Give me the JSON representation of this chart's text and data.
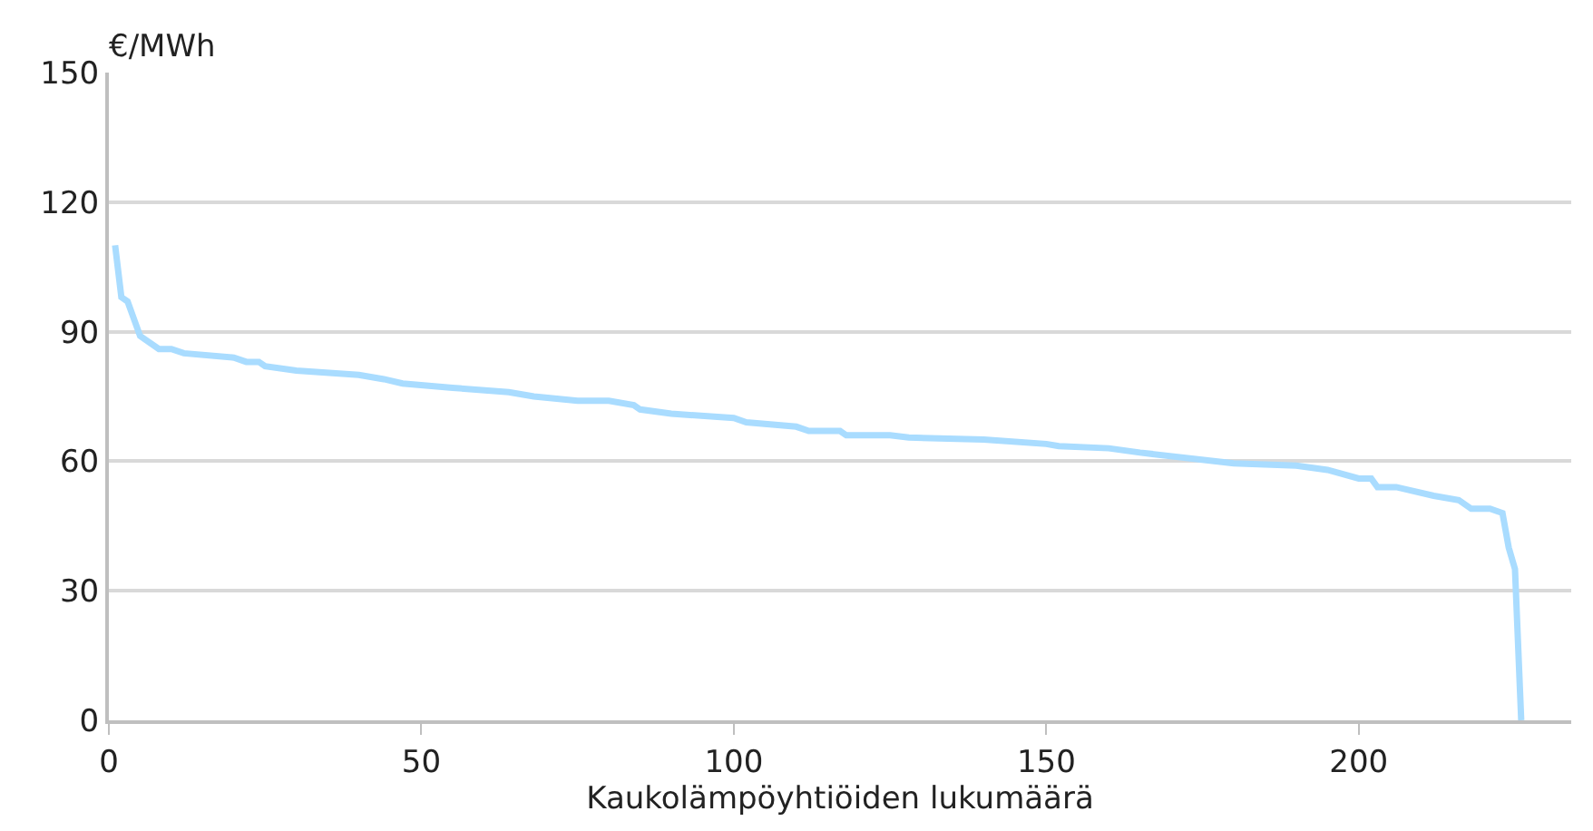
{
  "chart_data": {
    "type": "line",
    "xlabel": "Kaukolämpöyhtiöiden lukumäärä",
    "ylabel": "€/MWh",
    "x": [
      1,
      2,
      3,
      4,
      5,
      6,
      8,
      10,
      12,
      20,
      22,
      24,
      25,
      30,
      40,
      44,
      47,
      55,
      64,
      68,
      75,
      80,
      84,
      85,
      90,
      100,
      102,
      110,
      112,
      117,
      118,
      125,
      128,
      140,
      150,
      152,
      160,
      165,
      180,
      190,
      195,
      200,
      202,
      203,
      206,
      212,
      216,
      218,
      221,
      223,
      224,
      225,
      226
    ],
    "series": [
      {
        "color": "#a9dcff",
        "values": [
          110,
          98,
          97,
          93,
          89,
          88,
          86,
          86,
          85,
          84,
          83,
          83,
          82,
          81,
          80,
          79,
          78,
          77,
          76,
          75,
          74,
          74,
          73,
          72,
          71,
          70,
          69,
          68,
          67,
          67,
          66,
          66,
          65.5,
          65,
          64,
          63.5,
          63,
          62,
          59.5,
          59,
          58,
          56,
          56,
          54,
          54,
          52,
          51,
          49,
          49,
          48,
          40,
          35,
          0
        ]
      }
    ],
    "xlim": [
      0,
      234
    ],
    "xticks": [
      0,
      50,
      100,
      150,
      200
    ],
    "ylim": [
      0,
      150
    ],
    "yticks": [
      0,
      30,
      60,
      90,
      120,
      150
    ],
    "grid": "y",
    "legend": false,
    "marker": "none",
    "line_style": "solid"
  }
}
